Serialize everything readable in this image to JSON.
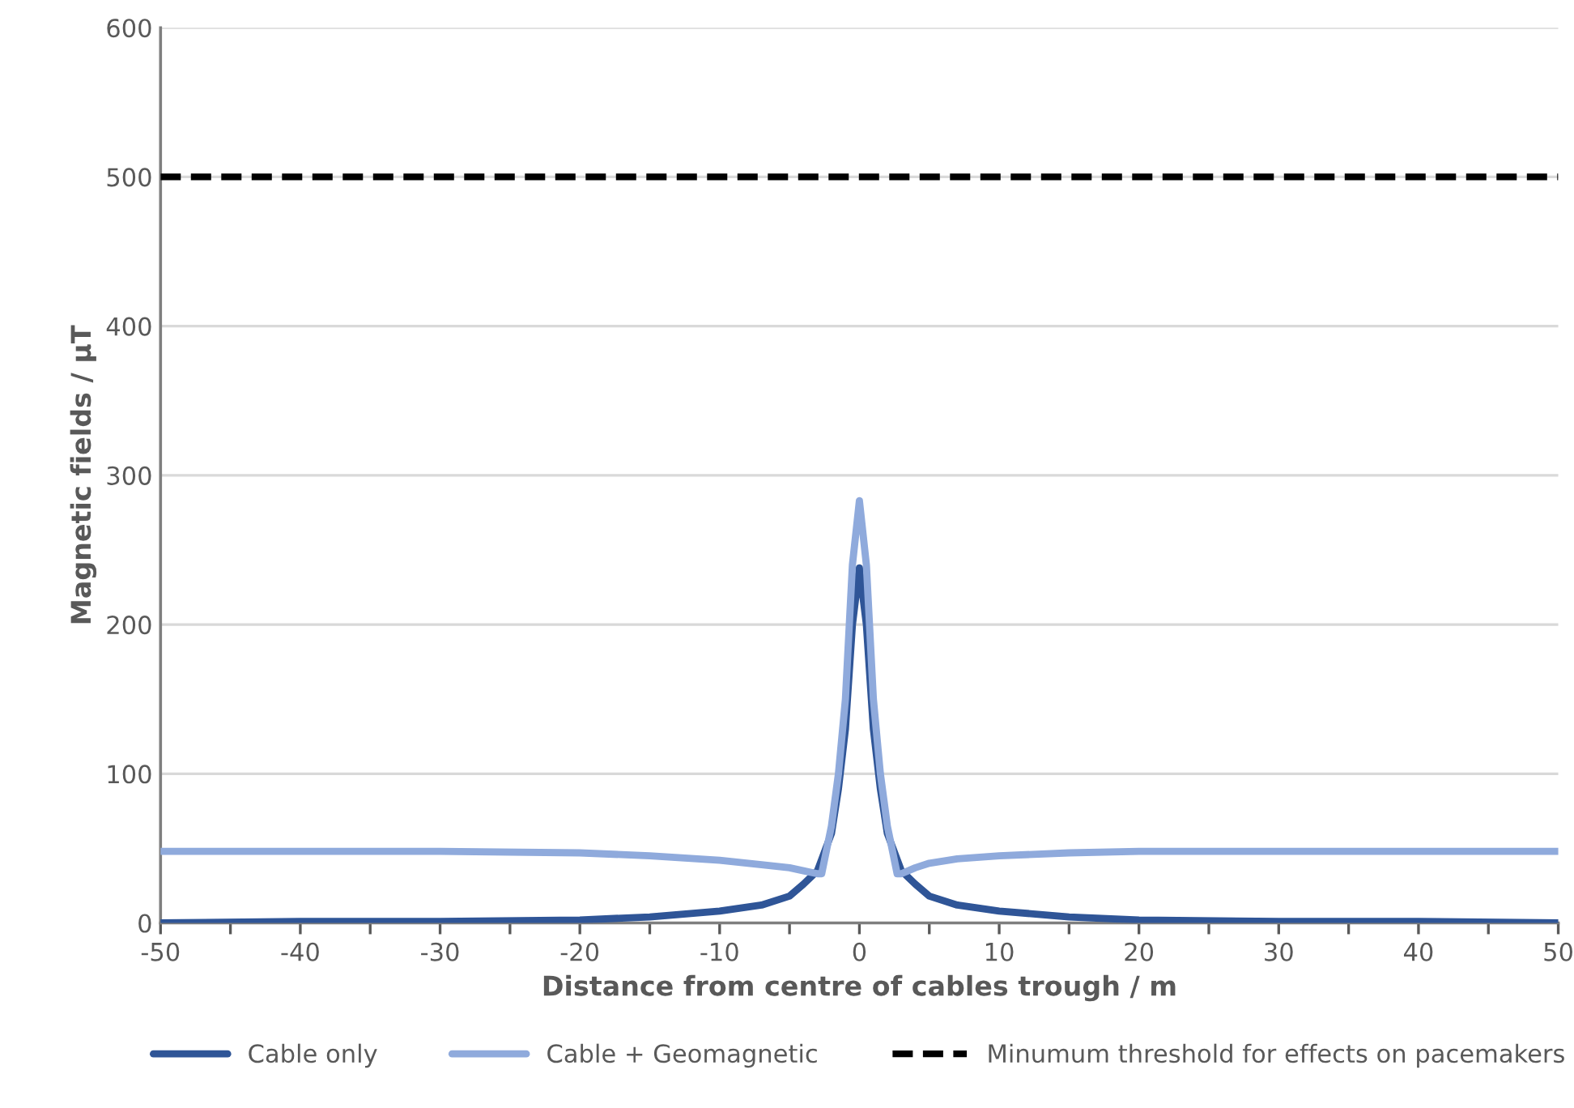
{
  "chart_data": {
    "type": "line",
    "xlabel": "Distance from centre of cables trough / m",
    "ylabel": "Magnetic fields / µT",
    "xlim": [
      -50,
      50
    ],
    "ylim": [
      0,
      600
    ],
    "xticks": [
      -50,
      {
        "value": -45,
        "label": null
      },
      -40,
      {
        "value": -35,
        "label": null
      },
      -30,
      {
        "value": -25,
        "label": null
      },
      -20,
      {
        "value": -15,
        "label": null
      },
      -10,
      {
        "value": -5,
        "label": null
      },
      0,
      {
        "value": 5,
        "label": null
      },
      10,
      {
        "value": 15,
        "label": null
      },
      20,
      {
        "value": 25,
        "label": null
      },
      30,
      {
        "value": 35,
        "label": null
      },
      40,
      {
        "value": 45,
        "label": null
      },
      50
    ],
    "yticks": [
      0,
      100,
      200,
      300,
      400,
      500,
      600
    ],
    "grid": "y",
    "legend": "bottom",
    "marker": "none",
    "line_style": "solid",
    "series": [
      {
        "name": "Cable only",
        "color": "#2f5597",
        "x": [
          -50,
          -40,
          -30,
          -20,
          -15,
          -10,
          -7,
          -5,
          -4,
          -3,
          -2,
          -1.5,
          -1,
          -0.5,
          0,
          0.5,
          1,
          1.5,
          2,
          3,
          4,
          5,
          7,
          10,
          15,
          20,
          30,
          40,
          50
        ],
        "values": [
          0,
          1,
          1,
          2,
          4,
          8,
          12,
          18,
          26,
          35,
          60,
          90,
          130,
          200,
          238,
          200,
          130,
          90,
          60,
          35,
          26,
          18,
          12,
          8,
          4,
          2,
          1,
          1,
          0
        ]
      },
      {
        "name": "Cable + Geomagnetic",
        "color": "#8faadc",
        "x": [
          -50,
          -40,
          -30,
          -20,
          -15,
          -10,
          -7,
          -5,
          -4,
          -3,
          -2.7,
          -2,
          -1.5,
          -1,
          -0.5,
          0,
          0.5,
          1,
          1.5,
          2,
          2.7,
          3,
          4,
          5,
          7,
          10,
          15,
          20,
          30,
          40,
          50
        ],
        "values": [
          48,
          48,
          48,
          47,
          45,
          42,
          39,
          37,
          35,
          33,
          33,
          65,
          100,
          150,
          240,
          283,
          240,
          150,
          100,
          65,
          33,
          33,
          37,
          40,
          43,
          45,
          47,
          48,
          48,
          48,
          48
        ]
      }
    ],
    "ref_lines": [
      {
        "axis": "y",
        "value": 500,
        "label": "Minumum threshold for effects on pacemakers",
        "color": "#000000",
        "line_style": "dashed"
      }
    ]
  }
}
